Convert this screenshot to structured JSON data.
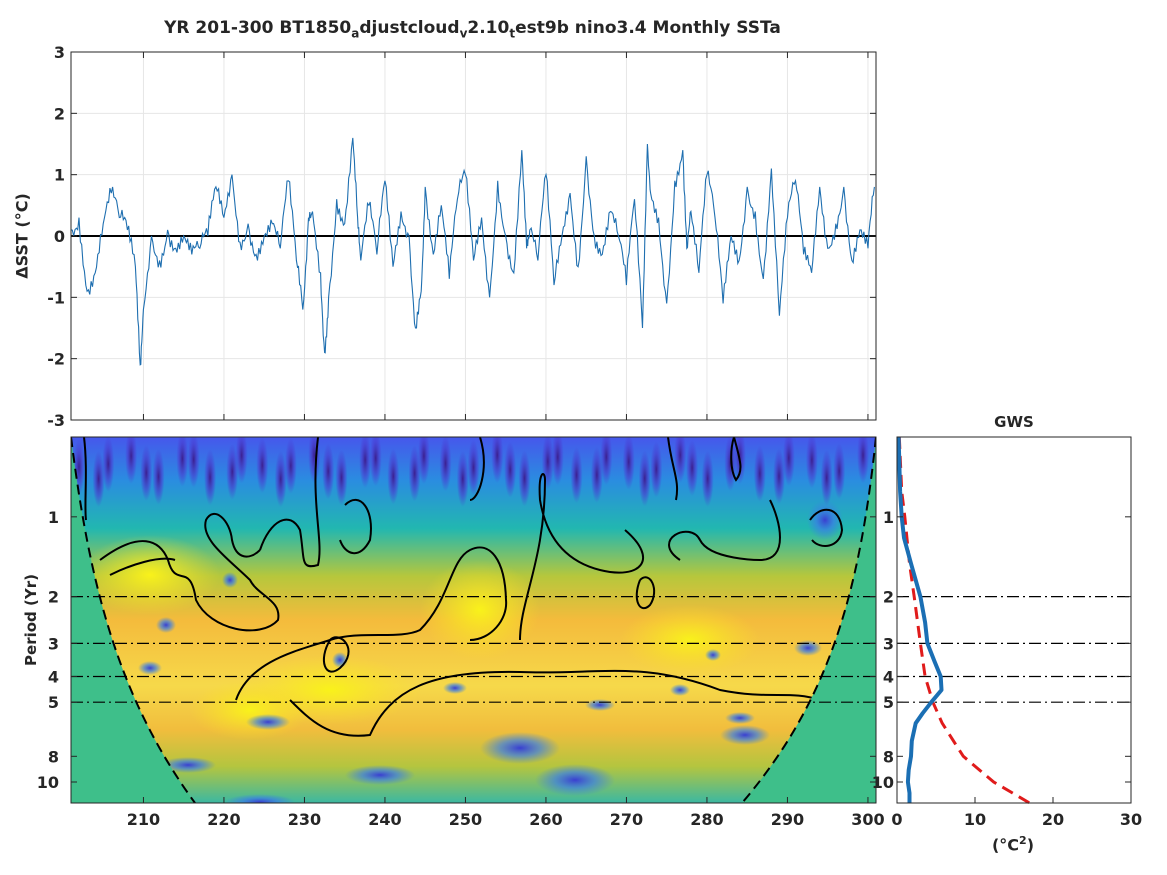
{
  "title": {
    "prefix": "YR 201-300 BT1850",
    "s1": "a",
    "p2": "djustcloud",
    "s2": "v",
    "p3": "2.10",
    "s3": "t",
    "p4": "est9b nino3.4 Monthly SSTa"
  },
  "gws_title": "GWS",
  "top_ylabel": "ΔSST (°C)",
  "bottom_ylabel": "Period (Yr)",
  "gws_xlabel": {
    "main": "(°C",
    "sup": "2",
    "close": ")"
  },
  "colors": {
    "series": "#1f6fb0",
    "gws_line": "#1b6fb4",
    "red_dashed": "#e01b1b",
    "fill_coi": "#3ebf8a"
  },
  "chart_data": [
    {
      "type": "line",
      "name": "time-series",
      "xlim": [
        201,
        301
      ],
      "ylim": [
        -3,
        3
      ],
      "xticks": [
        210,
        220,
        230,
        240,
        250,
        260,
        270,
        280,
        290,
        300
      ],
      "yticks": [
        -3,
        -2,
        -1,
        0,
        1,
        2,
        3
      ],
      "grid": true,
      "x": [
        201.0,
        202.0,
        203.0,
        204.0,
        205.0,
        206.0,
        207.0,
        208.0,
        209.0,
        209.6,
        210.0,
        211.0,
        212.0,
        213.0,
        214.0,
        215.0,
        216.0,
        217.0,
        218.0,
        219.0,
        220.0,
        221.0,
        222.0,
        223.0,
        224.0,
        225.0,
        226.0,
        227.0,
        228.0,
        229.0,
        229.8,
        230.5,
        231.0,
        232.0,
        232.5,
        233.0,
        234.0,
        235.0,
        236.0,
        236.6,
        237.0,
        238.0,
        239.0,
        240.0,
        241.0,
        242.0,
        243.0,
        243.8,
        244.5,
        245.0,
        246.0,
        247.0,
        248.0,
        249.0,
        250.0,
        251.0,
        252.0,
        253.0,
        254.0,
        255.0,
        256.0,
        257.0,
        257.6,
        258.0,
        259.0,
        260.0,
        261.0,
        262.0,
        263.0,
        264.0,
        265.0,
        266.0,
        267.0,
        268.0,
        269.0,
        270.0,
        271.0,
        272.0,
        272.6,
        273.0,
        274.0,
        275.0,
        276.0,
        277.0,
        277.5,
        278.0,
        279.0,
        280.0,
        281.0,
        282.0,
        283.0,
        284.0,
        285.0,
        286.0,
        287.0,
        288.0,
        289.0,
        290.0,
        291.0,
        292.0,
        293.0,
        294.0,
        295.0,
        296.0,
        297.0,
        298.0,
        299.0,
        300.0,
        300.8
      ],
      "y": [
        0.1,
        0.3,
        -0.9,
        -0.6,
        0.2,
        0.7,
        0.3,
        0.1,
        -0.5,
        -2.1,
        -1.2,
        0.0,
        -0.4,
        0.1,
        -0.2,
        0.0,
        -0.3,
        -0.2,
        0.0,
        0.8,
        0.3,
        1.0,
        -0.1,
        0.2,
        -0.3,
        0.0,
        0.2,
        -0.2,
        0.9,
        -0.4,
        -1.2,
        0.3,
        0.4,
        -0.6,
        -1.9,
        -1.0,
        0.6,
        0.2,
        1.6,
        0.3,
        -0.4,
        0.5,
        -0.3,
        0.9,
        -0.5,
        0.4,
        0.0,
        -1.5,
        -0.9,
        0.8,
        -0.3,
        0.5,
        -0.7,
        0.6,
        1.0,
        -0.4,
        0.3,
        -1.0,
        0.9,
        0.0,
        -0.6,
        1.4,
        -0.2,
        0.1,
        -0.4,
        1.0,
        -0.8,
        0.0,
        0.7,
        -0.5,
        1.3,
        0.0,
        -0.3,
        0.4,
        0.0,
        -0.8,
        0.6,
        -1.5,
        1.5,
        0.7,
        0.3,
        -1.1,
        0.9,
        1.4,
        -0.2,
        0.4,
        -0.6,
        1.0,
        0.3,
        -1.1,
        0.0,
        -0.4,
        0.8,
        0.4,
        -0.7,
        1.1,
        -1.3,
        0.3,
        0.9,
        -0.3,
        -0.6,
        0.8,
        -0.2,
        0.2,
        0.8,
        -0.4,
        0.1,
        -0.2,
        0.8
      ]
    },
    {
      "type": "heatmap",
      "name": "wavelet-power-spectrum",
      "xlim": [
        201,
        301
      ],
      "ylim": [
        0.5,
        12
      ],
      "xticks": [
        210,
        220,
        230,
        240,
        250,
        260,
        270,
        280,
        290,
        300
      ],
      "yscale": "log",
      "yaxis_reversed": true,
      "yticks": [
        1,
        2,
        3,
        4,
        5,
        8,
        10
      ],
      "reference_periods": [
        2,
        3,
        4,
        5
      ],
      "colormap": "parula"
    },
    {
      "type": "line",
      "name": "global-wavelet-spectrum",
      "xlim": [
        0,
        30
      ],
      "xticks": [
        0,
        10,
        20,
        30
      ],
      "yscale": "log",
      "yaxis_reversed": true,
      "yticks": [
        1,
        2,
        3,
        4,
        5,
        8,
        10
      ],
      "period": [
        0.5,
        0.8,
        1.0,
        1.2,
        1.5,
        2.0,
        2.5,
        3.0,
        3.5,
        4.0,
        4.5,
        5.0,
        5.5,
        6.0,
        7.0,
        8.0,
        9.0,
        10.0,
        11.0,
        12.0
      ],
      "power": [
        0.2,
        0.4,
        0.6,
        0.9,
        1.8,
        3.0,
        3.6,
        3.9,
        4.8,
        5.6,
        5.7,
        4.4,
        3.3,
        2.4,
        1.9,
        1.8,
        1.5,
        1.4,
        1.6,
        1.6
      ],
      "significance_period": [
        0.5,
        0.8,
        1.0,
        1.5,
        2.0,
        3.0,
        4.0,
        5.0,
        6.0,
        8.0,
        10.0,
        12.0
      ],
      "significance_power": [
        0.3,
        0.6,
        1.0,
        1.6,
        2.2,
        3.0,
        3.6,
        4.6,
        5.8,
        8.5,
        12.4,
        17.0
      ]
    }
  ]
}
